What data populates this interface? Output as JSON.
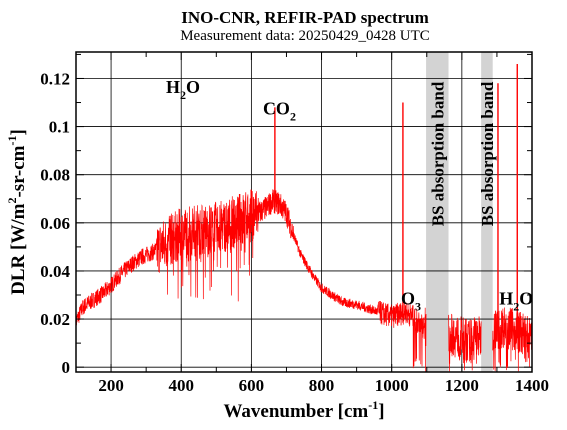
{
  "chart_data": {
    "type": "line",
    "title": "INO-CNR, REFIR-PAD spectrum",
    "subtitle": "Measurement data: 20250429_0428 UTC",
    "xlabel": {
      "main": "Wavenumber [cm",
      "sup": "-1",
      "close": "]"
    },
    "ylabel": {
      "part1": "DLR [W/m",
      "sup1": "2",
      "part2": "-sr-cm",
      "sup2": "-1",
      "close": "]"
    },
    "xlim": [
      100,
      1400
    ],
    "ylim": [
      -0.002,
      0.131
    ],
    "x_ticks": [
      200,
      400,
      600,
      800,
      1000,
      1200,
      1400
    ],
    "y_ticks": [
      0,
      0.02,
      0.04,
      0.06,
      0.08,
      0.1,
      0.12
    ],
    "y_tick_labels": [
      "0",
      "0.02",
      "0.04",
      "0.06",
      "0.08",
      "0.1",
      "0.12"
    ],
    "grid": true,
    "series_color": "#ff0000",
    "series": [
      {
        "x": [
          100,
          120,
          150,
          180,
          200,
          230,
          260,
          290,
          320,
          350,
          380,
          410,
          440,
          470,
          500,
          530,
          560,
          590,
          620,
          640,
          660,
          680,
          700,
          720,
          740,
          760,
          780,
          800,
          830,
          860,
          900,
          940,
          980,
          1000,
          1020,
          1040,
          1060,
          1080,
          1100,
          1120,
          1140,
          1160,
          1180,
          1200,
          1220,
          1240,
          1260,
          1280,
          1300,
          1320,
          1340,
          1360,
          1380,
          1400
        ],
        "y": [
          0.019,
          0.025,
          0.028,
          0.031,
          0.034,
          0.039,
          0.043,
          0.046,
          0.048,
          0.051,
          0.054,
          0.056,
          0.057,
          0.057,
          0.058,
          0.059,
          0.061,
          0.063,
          0.064,
          0.066,
          0.069,
          0.068,
          0.064,
          0.055,
          0.047,
          0.042,
          0.037,
          0.033,
          0.03,
          0.027,
          0.026,
          0.024,
          0.022,
          0.021,
          0.022,
          0.023,
          0.021,
          0.018,
          0.016,
          0.015,
          0.015,
          0.014,
          0.013,
          0.012,
          0.011,
          0.013,
          0.012,
          0.015,
          0.016,
          0.017,
          0.016,
          0.015,
          0.013,
          0.011
        ]
      }
    ],
    "spikes": [
      {
        "x": 667,
        "y": 0.108
      },
      {
        "x": 1032,
        "y": 0.11
      },
      {
        "x": 1303,
        "y": 0.118
      },
      {
        "x": 1358,
        "y": 0.126
      }
    ],
    "bands": [
      {
        "label": "BS absorption band",
        "x_start": 1098,
        "x_end": 1162
      },
      {
        "label": "BS absorption band",
        "x_start": 1255,
        "x_end": 1288
      }
    ],
    "annotations": [
      {
        "base": "H",
        "sub": "2",
        "tail": "O",
        "x": 405,
        "y": 0.114
      },
      {
        "base": "CO",
        "sub": "2",
        "tail": "",
        "x": 680,
        "y": 0.105
      },
      {
        "base": "O",
        "sub": "3",
        "tail": "",
        "x": 1055,
        "y": 0.026
      },
      {
        "base": "H",
        "sub": "2",
        "tail": "O",
        "x": 1355,
        "y": 0.026
      }
    ]
  }
}
